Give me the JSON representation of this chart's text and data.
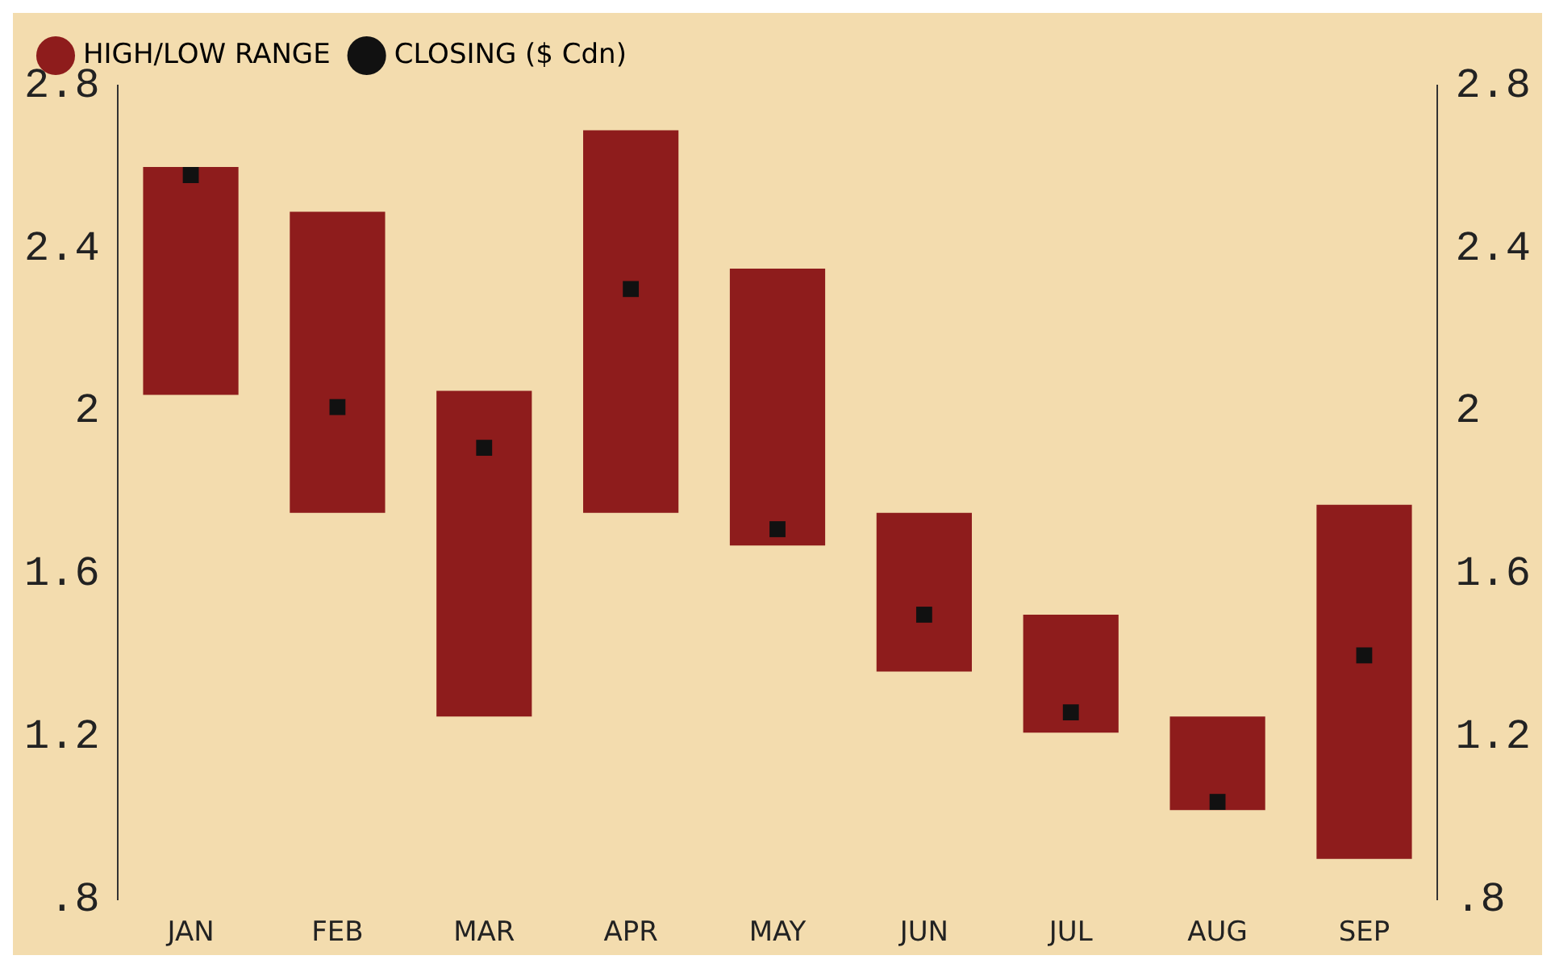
{
  "chart_data": {
    "type": "bar",
    "categories": [
      "JAN",
      "FEB",
      "MAR",
      "APR",
      "MAY",
      "JUN",
      "JUL",
      "AUG",
      "SEP"
    ],
    "series": [
      {
        "name": "HIGH/LOW RANGE",
        "color": "#8e1c1c",
        "base": [
          2.04,
          1.75,
          1.25,
          1.75,
          1.67,
          1.36,
          1.21,
          1.02,
          0.9
        ],
        "values": [
          0.56,
          0.74,
          0.8,
          0.94,
          0.68,
          0.39,
          0.29,
          0.23,
          0.87
        ]
      },
      {
        "name": "CLOSING ($ Cdn)",
        "type": "scatter",
        "color": "#111111",
        "x": [
          "JAN",
          "FEB",
          "MAR",
          "APR",
          "MAY",
          "JUN",
          "JUL",
          "AUG",
          "SEP"
        ],
        "values": [
          2.58,
          2.01,
          1.91,
          2.3,
          1.71,
          1.5,
          1.26,
          1.04,
          1.4
        ]
      }
    ],
    "ylim": [
      0.8,
      2.8
    ],
    "yticks": [
      {
        "value": 0.8,
        "label": ".8"
      },
      1.2,
      1.6,
      2,
      2.4,
      2.8
    ],
    "y2lim": [
      0.8,
      2.8
    ],
    "y2ticks": [
      {
        "value": 0.8,
        "label": ".8"
      },
      1.2,
      1.6,
      2,
      2.4,
      2.8
    ],
    "grid": false,
    "legend": "top left",
    "marker": "square"
  }
}
